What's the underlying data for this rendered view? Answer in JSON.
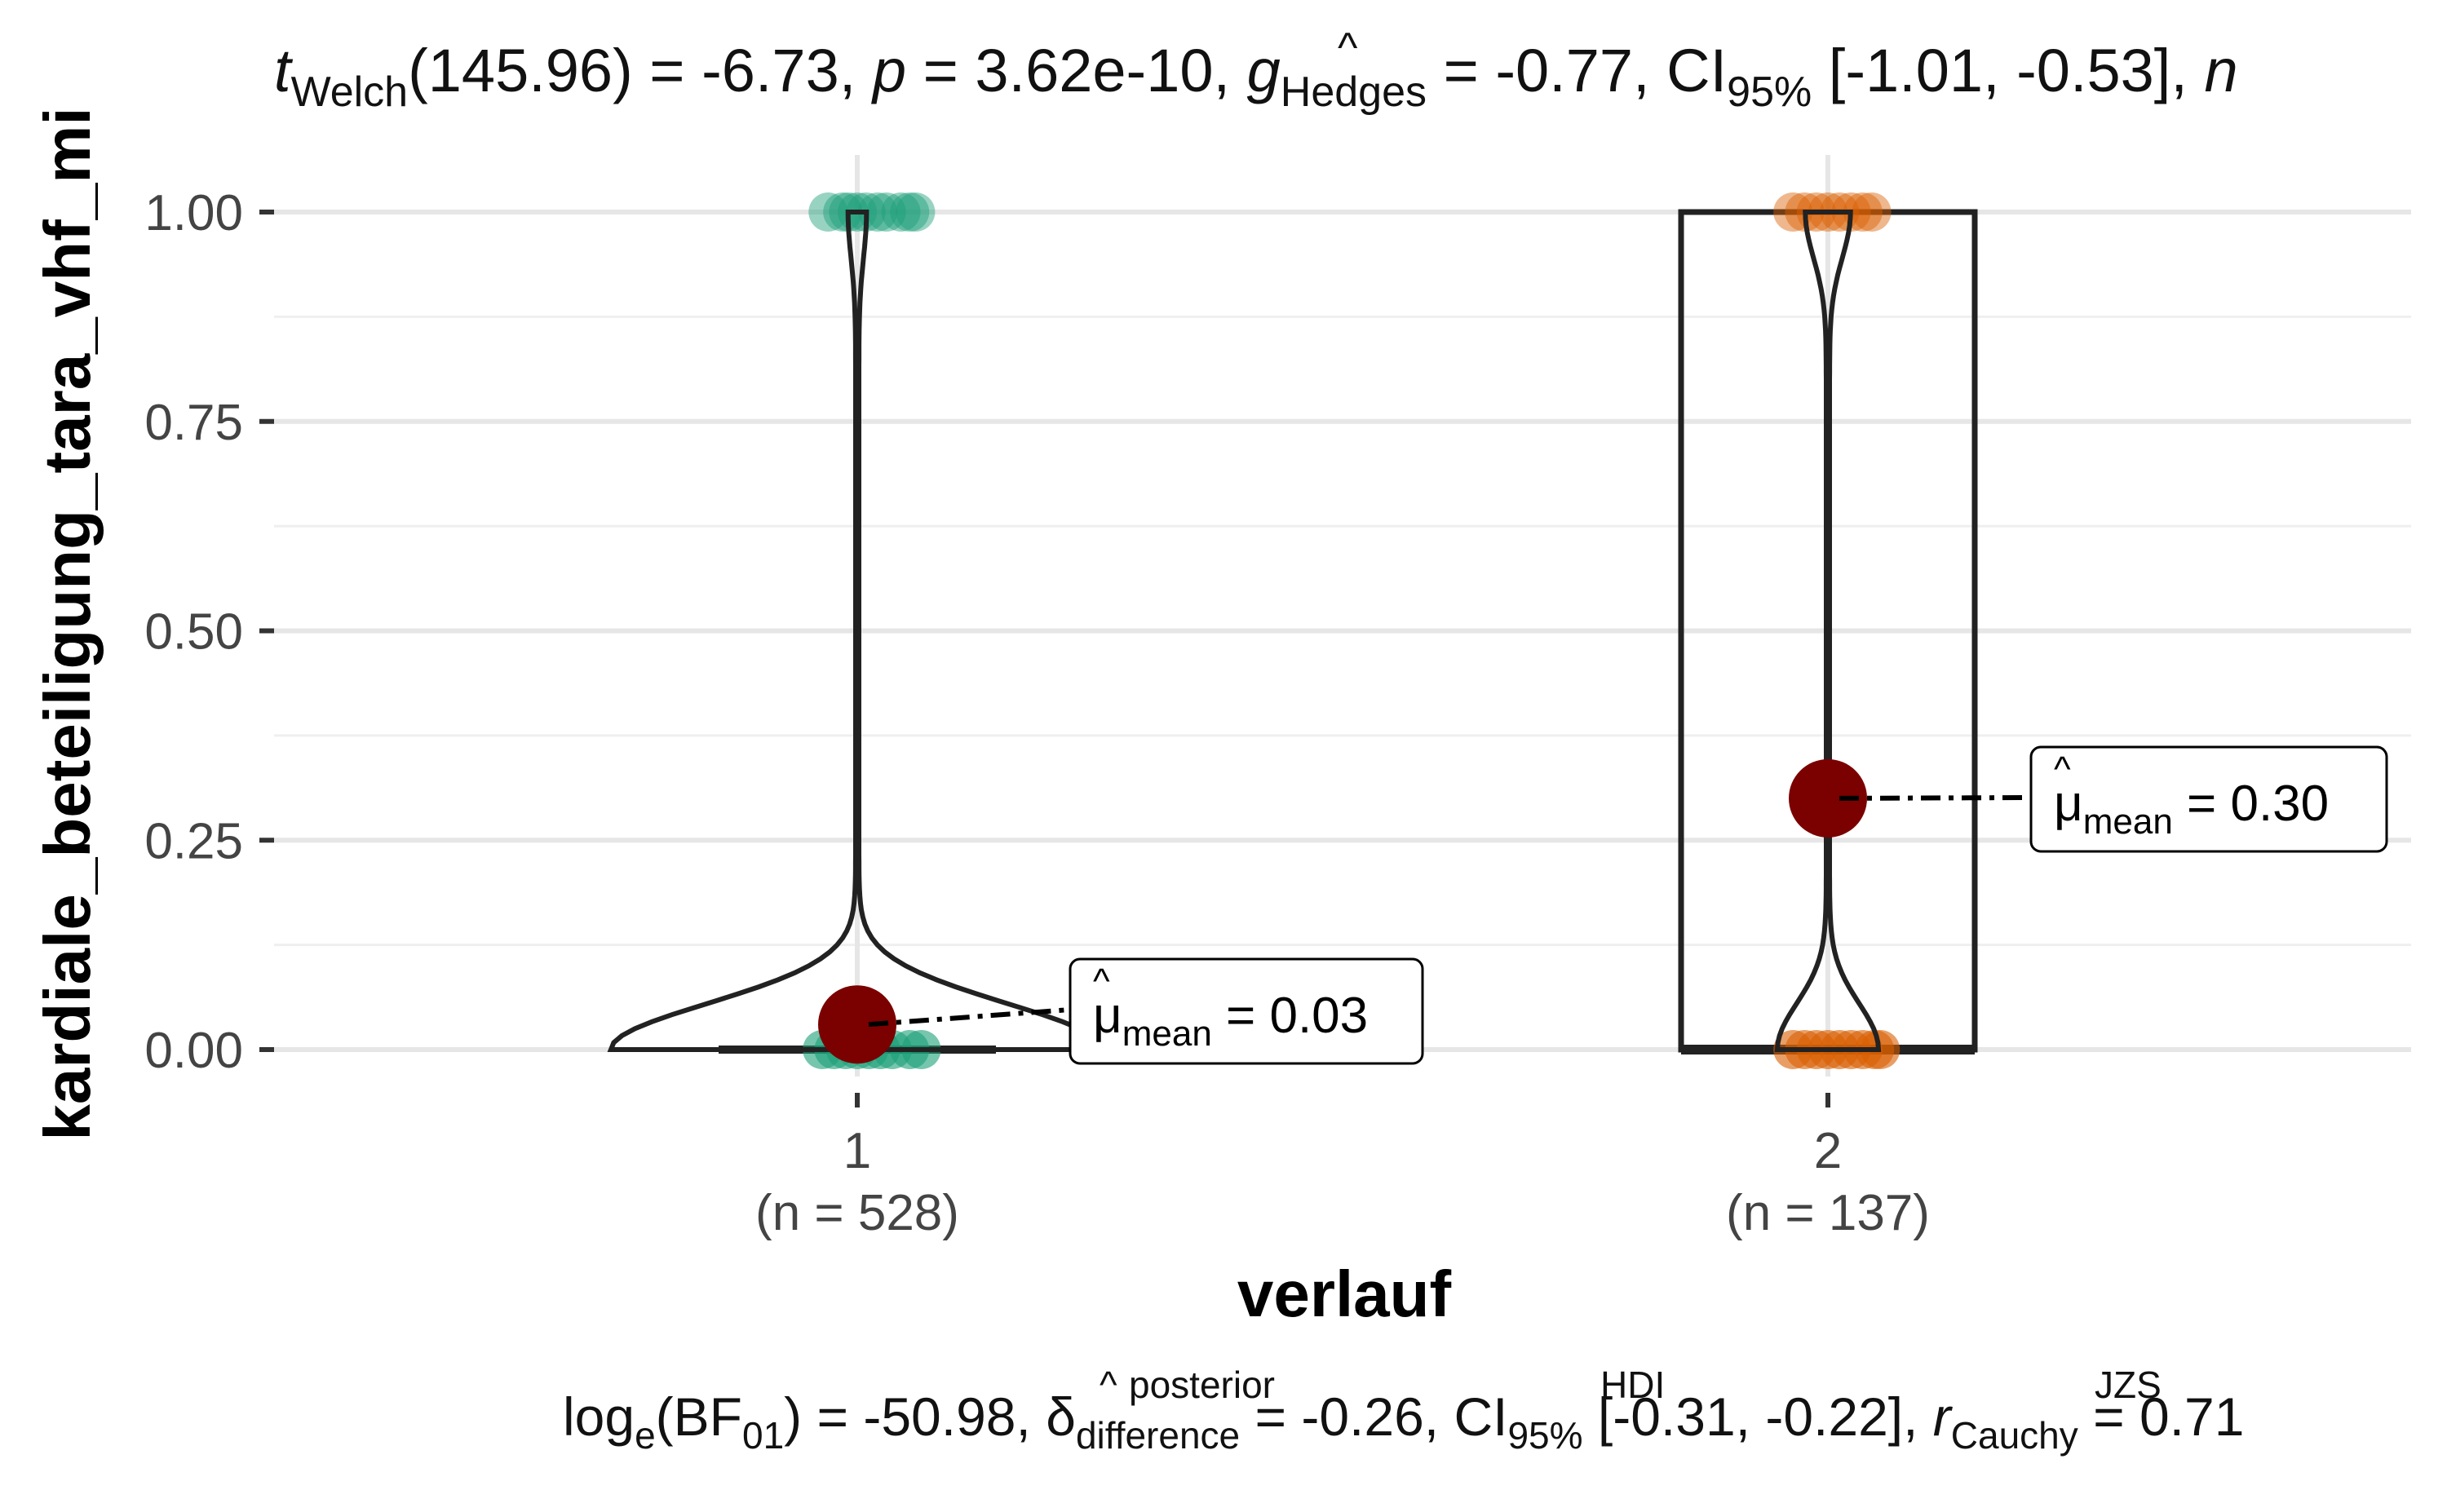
{
  "chart_data": {
    "type": "violin",
    "title_parts": {
      "t_sub": "Welch",
      "df": "(145.96)",
      "t_val": "= -6.73,",
      "p_label": "p",
      "p_val": "= 3.62e-10,",
      "g_sub": "Hedges",
      "g_val": "= -0.77,",
      "ci_sub": "95%",
      "ci_val": "[-1.01, -0.53],",
      "n_label": "n"
    },
    "subtitle_parts": {
      "log": "log",
      "log_sub": "e",
      "bf_open": "(BF",
      "bf_sub": "01",
      "bf_val": ") = -50.98,",
      "delta_sup": "posterior",
      "delta_sub": "difference",
      "delta_val": "= -0.26,",
      "ci_sup": "HDI",
      "ci_sub": "95%",
      "ci_val": "[-0.31, -0.22],",
      "r_sup": "JZS",
      "r_sub": "Cauchy",
      "r_val": "= 0.71"
    },
    "xlabel": "verlauf",
    "ylabel": "kardiale_beteiligung_tara_vhf_mi",
    "ylim": [
      0,
      1
    ],
    "yticks": [
      0,
      0.25,
      0.5,
      0.75,
      1.0
    ],
    "ytick_labels": [
      "0.00",
      "0.25",
      "0.50",
      "0.75",
      "1.00"
    ],
    "categories": [
      "1",
      "2"
    ],
    "category_counts": [
      "(n = 528)",
      "(n = 137)"
    ],
    "groups": [
      {
        "name": "1",
        "color": "#1B9E77",
        "n": 528,
        "mean": 0.03,
        "mean_label": "= 0.03",
        "points_at_1": [
          -0.1,
          -0.05,
          -0.03,
          0.0,
          0.03,
          0.07,
          0.1,
          0.15,
          0.18,
          0.2
        ],
        "points_at_0": [
          -0.12,
          -0.08,
          -0.04,
          0.0,
          0.04,
          0.08,
          0.12,
          0.18,
          0.22
        ]
      },
      {
        "name": "2",
        "color": "#D95F02",
        "n": 137,
        "mean": 0.3,
        "mean_label": "= 0.30",
        "points_at_1": [
          -0.12,
          -0.08,
          -0.04,
          0.0,
          0.04,
          0.08,
          0.12,
          0.15
        ],
        "points_at_0": [
          -0.12,
          -0.08,
          -0.04,
          0.0,
          0.04,
          0.08,
          0.12,
          0.16,
          0.18
        ]
      }
    ],
    "mean_color": "#7B0000",
    "mean_symbol": "μ",
    "mean_sub": "mean",
    "grid": true
  }
}
